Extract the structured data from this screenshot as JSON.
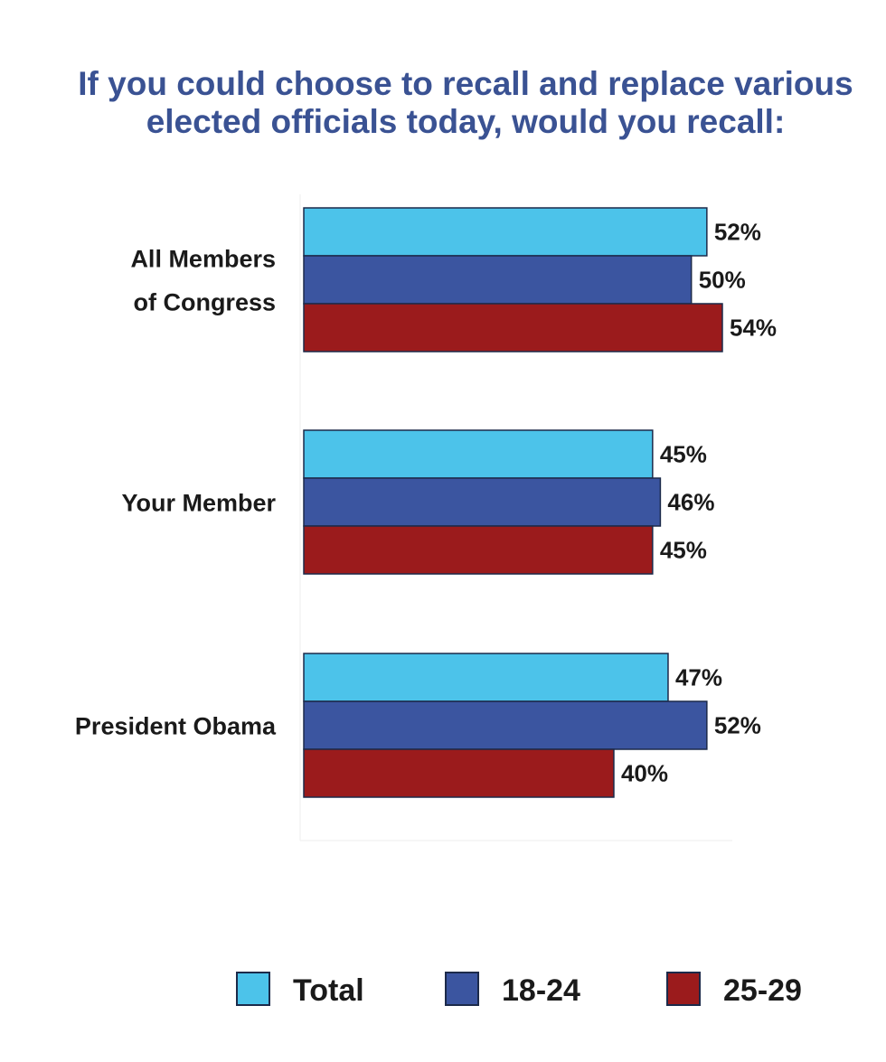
{
  "chart_data": {
    "type": "bar",
    "orientation": "horizontal",
    "title_lines": [
      "If you could choose to recall and replace various",
      "elected officials today, would you recall:"
    ],
    "categories": [
      [
        "All Members",
        "of Congress"
      ],
      [
        "Your Member"
      ],
      [
        "President Obama"
      ]
    ],
    "series": [
      {
        "name": "Total",
        "color": "#4cc3ea",
        "values": [
          52,
          45,
          47
        ],
        "labels": [
          "52%",
          "45%",
          "47%"
        ]
      },
      {
        "name": "18-24",
        "color": "#3b55a0",
        "values": [
          50,
          46,
          52
        ],
        "labels": [
          "50%",
          "46%",
          "52%"
        ]
      },
      {
        "name": "25-29",
        "color": "#9b1b1c",
        "values": [
          54,
          45,
          40
        ],
        "labels": [
          "54%",
          "45%",
          "40%"
        ]
      }
    ],
    "unit": "%",
    "xlim": [
      0,
      54
    ],
    "grid": false,
    "legend_position": "bottom"
  }
}
